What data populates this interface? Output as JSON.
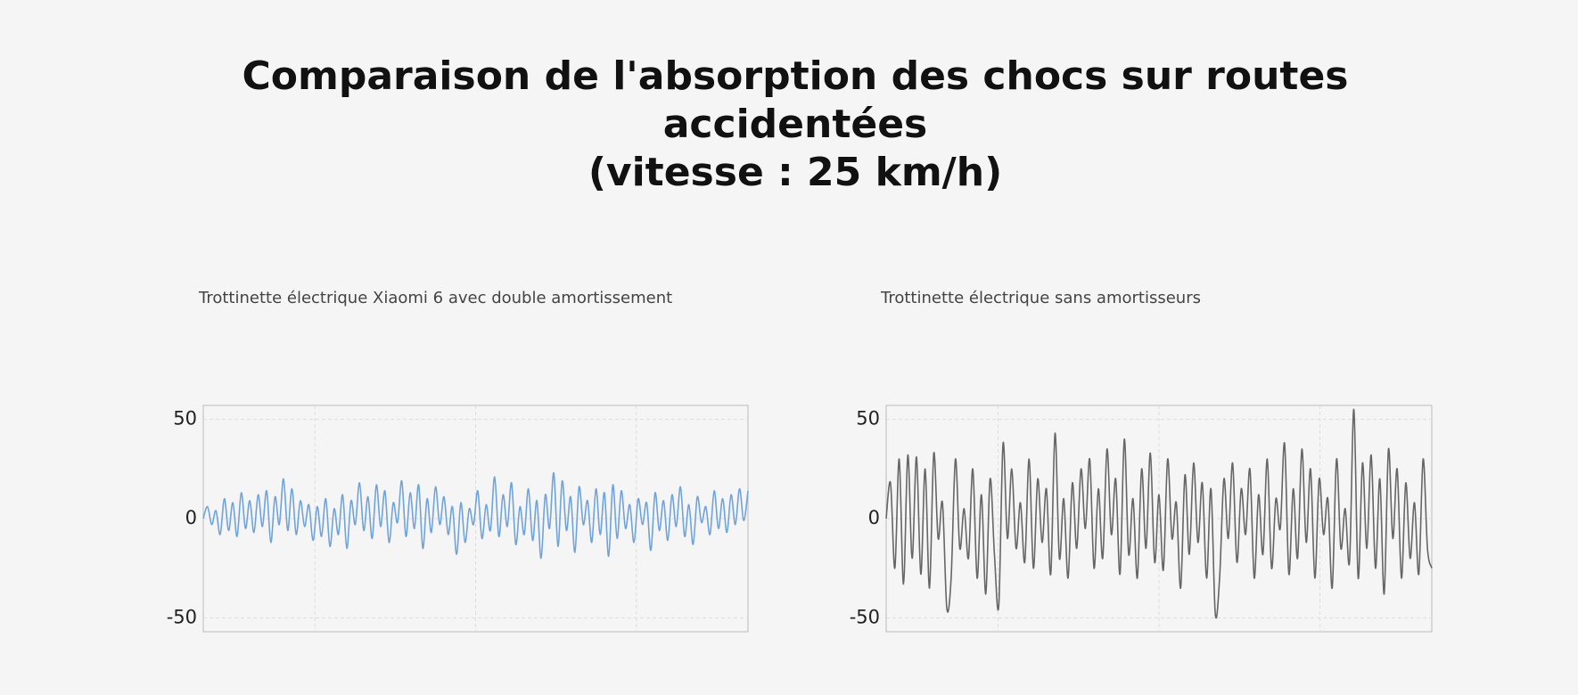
{
  "title_lines": [
    "Comparaison de l'absorption des chocs sur routes",
    "accidentées",
    "(vitesse : 25 km/h)"
  ],
  "chart_data": [
    {
      "type": "line",
      "title": "Trottinette électrique Xiaomi 6 avec double amortissement",
      "color": "#6fa3dc",
      "ylim": [
        -57,
        57
      ],
      "yticks": [
        -50,
        0,
        50
      ],
      "grid": true,
      "values": [
        0,
        6,
        -3,
        4,
        -8,
        10,
        -6,
        8,
        -9,
        13,
        -5,
        9,
        -7,
        12,
        -4,
        14,
        -12,
        11,
        -3,
        20,
        -6,
        15,
        -8,
        9,
        -4,
        7,
        -11,
        6,
        -9,
        10,
        -14,
        5,
        -8,
        12,
        -15,
        9,
        -3,
        18,
        -6,
        11,
        -10,
        17,
        -4,
        14,
        -12,
        8,
        -2,
        19,
        -9,
        13,
        -5,
        17,
        -15,
        10,
        -7,
        16,
        -3,
        11,
        -8,
        6,
        -18,
        8,
        -12,
        5,
        -3,
        14,
        -10,
        7,
        -6,
        21,
        -9,
        12,
        -4,
        18,
        -13,
        6,
        -8,
        15,
        -11,
        9,
        -20,
        12,
        -5,
        23,
        -14,
        19,
        -6,
        11,
        -17,
        16,
        -3,
        9,
        -12,
        15,
        -8,
        13,
        -19,
        17,
        -10,
        14,
        -5,
        7,
        -12,
        10,
        -3,
        8,
        -16,
        13,
        -6,
        9,
        -11,
        12,
        -4,
        16,
        -9,
        7,
        -13,
        11,
        -2,
        6,
        -8,
        14,
        -5,
        10,
        -7,
        12,
        -3,
        15,
        -1,
        14
      ]
    },
    {
      "type": "line",
      "title": "Trottinette électrique sans amortisseurs",
      "color": "#666666",
      "ylim": [
        -57,
        57
      ],
      "yticks": [
        -50,
        0,
        50
      ],
      "grid": true,
      "values": [
        0,
        18,
        -25,
        30,
        -33,
        32,
        -20,
        31,
        -28,
        25,
        -35,
        33,
        -10,
        8,
        -45,
        -30,
        30,
        -15,
        5,
        -20,
        25,
        -30,
        12,
        -38,
        20,
        -18,
        -44,
        38,
        -10,
        25,
        -15,
        8,
        -22,
        30,
        -25,
        20,
        -12,
        15,
        -28,
        43,
        -20,
        10,
        -30,
        18,
        -15,
        25,
        -5,
        30,
        -25,
        15,
        -20,
        35,
        -8,
        20,
        -28,
        40,
        -18,
        10,
        -30,
        25,
        -15,
        33,
        -22,
        12,
        -26,
        30,
        -10,
        8,
        -35,
        22,
        -18,
        28,
        -12,
        18,
        -30,
        15,
        -48,
        -30,
        20,
        -10,
        28,
        -22,
        15,
        -8,
        25,
        -30,
        12,
        -18,
        30,
        -25,
        10,
        -5,
        38,
        -28,
        15,
        -20,
        35,
        -12,
        25,
        -30,
        20,
        -8,
        10,
        -35,
        30,
        -15,
        5,
        -22,
        55,
        -30,
        28,
        -15,
        32,
        -25,
        20,
        -38,
        35,
        -10,
        25,
        -30,
        18,
        -20,
        8,
        -28,
        30,
        -15,
        -25
      ]
    }
  ]
}
